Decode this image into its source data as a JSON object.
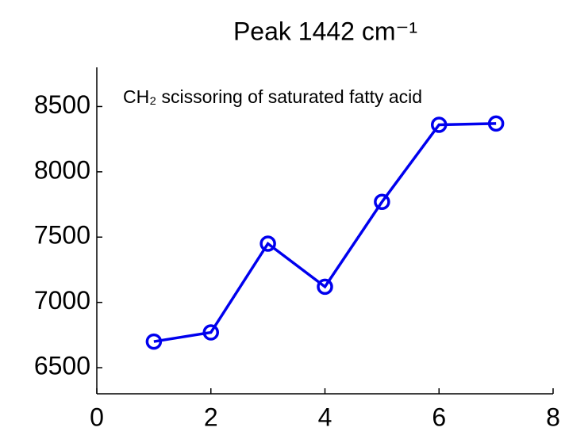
{
  "chart_data": {
    "type": "line",
    "title": "Peak 1442 cm⁻¹",
    "annotation": "CH₂ scissoring of saturated fatty acid",
    "x": [
      1,
      2,
      3,
      4,
      5,
      6,
      7
    ],
    "values": [
      6700,
      6770,
      7450,
      7120,
      7770,
      8360,
      8370
    ],
    "color": "#0000ee",
    "xlim": [
      0,
      8
    ],
    "xticks": [
      0,
      2,
      4,
      6,
      8
    ],
    "ylim": [
      6300,
      8800
    ],
    "yticks": [
      6500,
      7000,
      7500,
      8000,
      8500
    ],
    "grid": false
  }
}
